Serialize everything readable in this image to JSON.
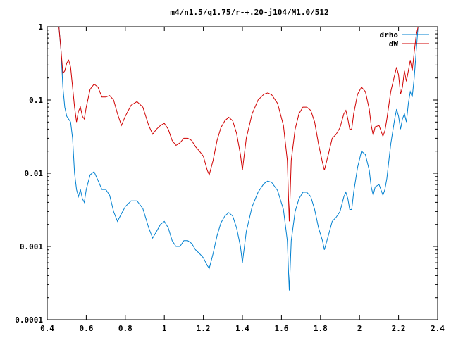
{
  "chart_data": {
    "type": "line",
    "title": "m4/n1.5/q1.75/r-+.20-j104/M1.0/512",
    "xlabel": "",
    "ylabel": "",
    "xlim": [
      0.4,
      2.4
    ],
    "ylim": [
      0.0001,
      1
    ],
    "yscale": "log",
    "x_ticks": [
      0.4,
      0.6,
      0.8,
      1.0,
      1.2,
      1.4,
      1.6,
      1.8,
      2.0,
      2.2,
      2.4
    ],
    "x_tick_labels": [
      "0.4",
      "0.6",
      "0.8",
      "1",
      "1.2",
      "1.4",
      "1.6",
      "1.8",
      "2",
      "2.2",
      "2.4"
    ],
    "y_ticks": [
      0.0001,
      0.001,
      0.01,
      0.1,
      1
    ],
    "y_tick_labels": [
      "0.0001",
      "0.001",
      "0.01",
      "0.1",
      "1"
    ],
    "grid": false,
    "legend_position": "top-right",
    "series": [
      {
        "name": "drho",
        "color": "#0080d0",
        "points": [
          [
            0.46,
            1.0
          ],
          [
            0.47,
            0.5
          ],
          [
            0.48,
            0.15
          ],
          [
            0.49,
            0.08
          ],
          [
            0.5,
            0.06
          ],
          [
            0.52,
            0.05
          ],
          [
            0.53,
            0.03
          ],
          [
            0.54,
            0.01
          ],
          [
            0.55,
            0.006
          ],
          [
            0.56,
            0.0048
          ],
          [
            0.57,
            0.006
          ],
          [
            0.58,
            0.0045
          ],
          [
            0.59,
            0.004
          ],
          [
            0.6,
            0.006
          ],
          [
            0.62,
            0.0095
          ],
          [
            0.64,
            0.0105
          ],
          [
            0.66,
            0.008
          ],
          [
            0.68,
            0.006
          ],
          [
            0.7,
            0.006
          ],
          [
            0.72,
            0.005
          ],
          [
            0.74,
            0.003
          ],
          [
            0.76,
            0.0022
          ],
          [
            0.78,
            0.0028
          ],
          [
            0.8,
            0.0035
          ],
          [
            0.83,
            0.0042
          ],
          [
            0.86,
            0.0042
          ],
          [
            0.89,
            0.0033
          ],
          [
            0.92,
            0.0018
          ],
          [
            0.94,
            0.0013
          ],
          [
            0.96,
            0.0016
          ],
          [
            0.98,
            0.002
          ],
          [
            1.0,
            0.0022
          ],
          [
            1.02,
            0.0018
          ],
          [
            1.04,
            0.0012
          ],
          [
            1.06,
            0.001
          ],
          [
            1.08,
            0.001
          ],
          [
            1.1,
            0.0012
          ],
          [
            1.12,
            0.0012
          ],
          [
            1.14,
            0.0011
          ],
          [
            1.16,
            0.0009
          ],
          [
            1.18,
            0.0008
          ],
          [
            1.2,
            0.0007
          ],
          [
            1.22,
            0.00055
          ],
          [
            1.23,
            0.0005
          ],
          [
            1.25,
            0.0008
          ],
          [
            1.27,
            0.0014
          ],
          [
            1.29,
            0.0021
          ],
          [
            1.31,
            0.0026
          ],
          [
            1.33,
            0.0029
          ],
          [
            1.35,
            0.0026
          ],
          [
            1.37,
            0.0018
          ],
          [
            1.39,
            0.001
          ],
          [
            1.4,
            0.0006
          ],
          [
            1.42,
            0.0016
          ],
          [
            1.45,
            0.0035
          ],
          [
            1.48,
            0.0055
          ],
          [
            1.51,
            0.0072
          ],
          [
            1.53,
            0.0078
          ],
          [
            1.55,
            0.0075
          ],
          [
            1.58,
            0.0058
          ],
          [
            1.61,
            0.0032
          ],
          [
            1.63,
            0.0012
          ],
          [
            1.64,
            0.00025
          ],
          [
            1.65,
            0.0012
          ],
          [
            1.67,
            0.003
          ],
          [
            1.69,
            0.0045
          ],
          [
            1.71,
            0.0055
          ],
          [
            1.73,
            0.0055
          ],
          [
            1.75,
            0.0048
          ],
          [
            1.77,
            0.0032
          ],
          [
            1.79,
            0.0018
          ],
          [
            1.81,
            0.0012
          ],
          [
            1.82,
            0.0009
          ],
          [
            1.84,
            0.0014
          ],
          [
            1.86,
            0.0022
          ],
          [
            1.88,
            0.0025
          ],
          [
            1.9,
            0.003
          ],
          [
            1.92,
            0.0048
          ],
          [
            1.93,
            0.0055
          ],
          [
            1.94,
            0.0045
          ],
          [
            1.95,
            0.0032
          ],
          [
            1.96,
            0.0032
          ],
          [
            1.97,
            0.0055
          ],
          [
            1.99,
            0.012
          ],
          [
            2.01,
            0.02
          ],
          [
            2.03,
            0.018
          ],
          [
            2.05,
            0.011
          ],
          [
            2.06,
            0.0065
          ],
          [
            2.07,
            0.005
          ],
          [
            2.08,
            0.0065
          ],
          [
            2.1,
            0.007
          ],
          [
            2.12,
            0.005
          ],
          [
            2.13,
            0.006
          ],
          [
            2.14,
            0.0085
          ],
          [
            2.16,
            0.025
          ],
          [
            2.18,
            0.055
          ],
          [
            2.19,
            0.075
          ],
          [
            2.2,
            0.06
          ],
          [
            2.21,
            0.04
          ],
          [
            2.22,
            0.055
          ],
          [
            2.23,
            0.065
          ],
          [
            2.24,
            0.05
          ],
          [
            2.25,
            0.09
          ],
          [
            2.26,
            0.13
          ],
          [
            2.27,
            0.11
          ],
          [
            2.28,
            0.2
          ],
          [
            2.29,
            0.45
          ],
          [
            2.3,
            1.0
          ]
        ]
      },
      {
        "name": "dW",
        "color": "#d00000",
        "points": [
          [
            0.46,
            1.0
          ],
          [
            0.47,
            0.5
          ],
          [
            0.48,
            0.23
          ],
          [
            0.49,
            0.25
          ],
          [
            0.5,
            0.32
          ],
          [
            0.51,
            0.35
          ],
          [
            0.52,
            0.28
          ],
          [
            0.53,
            0.15
          ],
          [
            0.54,
            0.08
          ],
          [
            0.55,
            0.05
          ],
          [
            0.56,
            0.07
          ],
          [
            0.57,
            0.08
          ],
          [
            0.58,
            0.06
          ],
          [
            0.59,
            0.055
          ],
          [
            0.6,
            0.08
          ],
          [
            0.62,
            0.14
          ],
          [
            0.64,
            0.165
          ],
          [
            0.66,
            0.15
          ],
          [
            0.68,
            0.11
          ],
          [
            0.7,
            0.11
          ],
          [
            0.72,
            0.115
          ],
          [
            0.74,
            0.1
          ],
          [
            0.76,
            0.065
          ],
          [
            0.78,
            0.045
          ],
          [
            0.8,
            0.06
          ],
          [
            0.83,
            0.085
          ],
          [
            0.86,
            0.095
          ],
          [
            0.89,
            0.08
          ],
          [
            0.92,
            0.045
          ],
          [
            0.94,
            0.034
          ],
          [
            0.96,
            0.04
          ],
          [
            0.98,
            0.045
          ],
          [
            1.0,
            0.048
          ],
          [
            1.02,
            0.04
          ],
          [
            1.04,
            0.028
          ],
          [
            1.06,
            0.024
          ],
          [
            1.08,
            0.026
          ],
          [
            1.1,
            0.03
          ],
          [
            1.12,
            0.03
          ],
          [
            1.14,
            0.028
          ],
          [
            1.16,
            0.023
          ],
          [
            1.18,
            0.02
          ],
          [
            1.2,
            0.017
          ],
          [
            1.22,
            0.011
          ],
          [
            1.23,
            0.0095
          ],
          [
            1.25,
            0.015
          ],
          [
            1.27,
            0.028
          ],
          [
            1.29,
            0.042
          ],
          [
            1.31,
            0.052
          ],
          [
            1.33,
            0.058
          ],
          [
            1.35,
            0.052
          ],
          [
            1.37,
            0.035
          ],
          [
            1.39,
            0.018
          ],
          [
            1.4,
            0.011
          ],
          [
            1.42,
            0.03
          ],
          [
            1.45,
            0.065
          ],
          [
            1.48,
            0.1
          ],
          [
            1.51,
            0.12
          ],
          [
            1.53,
            0.125
          ],
          [
            1.55,
            0.118
          ],
          [
            1.58,
            0.09
          ],
          [
            1.61,
            0.045
          ],
          [
            1.63,
            0.015
          ],
          [
            1.64,
            0.0022
          ],
          [
            1.65,
            0.015
          ],
          [
            1.67,
            0.04
          ],
          [
            1.69,
            0.065
          ],
          [
            1.71,
            0.08
          ],
          [
            1.73,
            0.08
          ],
          [
            1.75,
            0.072
          ],
          [
            1.77,
            0.05
          ],
          [
            1.79,
            0.025
          ],
          [
            1.81,
            0.014
          ],
          [
            1.82,
            0.011
          ],
          [
            1.84,
            0.018
          ],
          [
            1.86,
            0.03
          ],
          [
            1.88,
            0.034
          ],
          [
            1.9,
            0.042
          ],
          [
            1.92,
            0.065
          ],
          [
            1.93,
            0.072
          ],
          [
            1.94,
            0.055
          ],
          [
            1.95,
            0.04
          ],
          [
            1.96,
            0.04
          ],
          [
            1.97,
            0.065
          ],
          [
            1.99,
            0.12
          ],
          [
            2.01,
            0.15
          ],
          [
            2.03,
            0.13
          ],
          [
            2.05,
            0.075
          ],
          [
            2.06,
            0.045
          ],
          [
            2.07,
            0.033
          ],
          [
            2.08,
            0.043
          ],
          [
            2.1,
            0.045
          ],
          [
            2.12,
            0.032
          ],
          [
            2.13,
            0.038
          ],
          [
            2.14,
            0.055
          ],
          [
            2.16,
            0.13
          ],
          [
            2.18,
            0.22
          ],
          [
            2.19,
            0.28
          ],
          [
            2.2,
            0.22
          ],
          [
            2.21,
            0.12
          ],
          [
            2.22,
            0.15
          ],
          [
            2.23,
            0.25
          ],
          [
            2.24,
            0.18
          ],
          [
            2.25,
            0.25
          ],
          [
            2.26,
            0.35
          ],
          [
            2.27,
            0.25
          ],
          [
            2.28,
            0.45
          ],
          [
            2.29,
            0.75
          ],
          [
            2.3,
            1.0
          ]
        ]
      }
    ]
  }
}
